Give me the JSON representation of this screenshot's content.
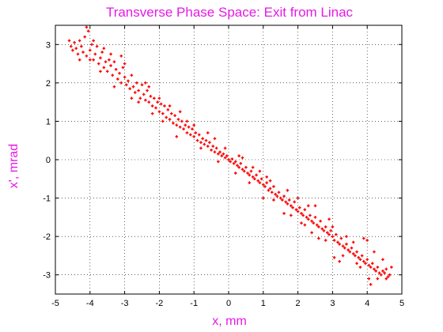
{
  "chart_data": {
    "type": "scatter",
    "title": "Transverse Phase Space: Exit from Linac",
    "xlabel": "x, mm",
    "ylabel": "x', mrad",
    "xlim": [
      -5,
      5
    ],
    "ylim": [
      -3.5,
      3.5
    ],
    "xticks": [
      -5,
      -4,
      -3,
      -2,
      -1,
      0,
      1,
      2,
      3,
      4,
      5
    ],
    "yticks": [
      -3,
      -2,
      -1,
      0,
      1,
      2,
      3
    ],
    "grid": true,
    "colors": {
      "title": "#e619e6",
      "labels": "#e619e6",
      "points": "#ff0000"
    },
    "marker": "plus",
    "points": [
      [
        -4.55,
        2.95
      ],
      [
        -4.5,
        2.85
      ],
      [
        -4.45,
        3.05
      ],
      [
        -4.4,
        2.9
      ],
      [
        -4.35,
        2.75
      ],
      [
        -4.3,
        3.1
      ],
      [
        -4.25,
        2.95
      ],
      [
        -4.2,
        2.8
      ],
      [
        -4.15,
        3.2
      ],
      [
        -4.1,
        2.7
      ],
      [
        -4.05,
        3.35
      ],
      [
        -4.0,
        2.85
      ],
      [
        -3.95,
        3.0
      ],
      [
        -3.9,
        2.6
      ],
      [
        -3.85,
        2.75
      ],
      [
        -3.8,
        2.95
      ],
      [
        -3.75,
        2.5
      ],
      [
        -3.7,
        2.65
      ],
      [
        -3.65,
        2.8
      ],
      [
        -3.6,
        2.4
      ],
      [
        -3.55,
        2.55
      ],
      [
        -3.5,
        2.3
      ],
      [
        -3.45,
        2.6
      ],
      [
        -3.4,
        2.45
      ],
      [
        -3.35,
        2.2
      ],
      [
        -3.3,
        2.55
      ],
      [
        -3.25,
        2.35
      ],
      [
        -3.2,
        2.1
      ],
      [
        -3.15,
        2.25
      ],
      [
        -3.1,
        2.0
      ],
      [
        -3.05,
        2.4
      ],
      [
        -3.0,
        2.15
      ],
      [
        -2.95,
        1.95
      ],
      [
        -2.9,
        2.05
      ],
      [
        -2.85,
        1.85
      ],
      [
        -2.8,
        2.2
      ],
      [
        -2.75,
        1.9
      ],
      [
        -2.7,
        1.75
      ],
      [
        -2.65,
        2.0
      ],
      [
        -2.6,
        1.8
      ],
      [
        -2.55,
        1.6
      ],
      [
        -2.5,
        1.95
      ],
      [
        -2.45,
        1.7
      ],
      [
        -2.4,
        1.55
      ],
      [
        -2.35,
        1.8
      ],
      [
        -2.3,
        1.5
      ],
      [
        -2.25,
        1.65
      ],
      [
        -2.2,
        1.4
      ],
      [
        -2.15,
        1.6
      ],
      [
        -2.1,
        1.35
      ],
      [
        -2.05,
        1.5
      ],
      [
        -2.0,
        1.25
      ],
      [
        -1.95,
        1.45
      ],
      [
        -1.9,
        1.2
      ],
      [
        -1.85,
        1.4
      ],
      [
        -1.8,
        1.1
      ],
      [
        -1.75,
        1.3
      ],
      [
        -1.7,
        1.05
      ],
      [
        -1.65,
        1.2
      ],
      [
        -1.6,
        0.95
      ],
      [
        -1.55,
        1.15
      ],
      [
        -1.5,
        0.9
      ],
      [
        -1.45,
        1.05
      ],
      [
        -1.4,
        0.85
      ],
      [
        -1.35,
        1.0
      ],
      [
        -1.3,
        0.8
      ],
      [
        -1.25,
        0.9
      ],
      [
        -1.2,
        0.7
      ],
      [
        -1.15,
        0.85
      ],
      [
        -1.1,
        0.65
      ],
      [
        -1.05,
        0.8
      ],
      [
        -1.0,
        0.6
      ],
      [
        -0.95,
        0.7
      ],
      [
        -0.9,
        0.5
      ],
      [
        -0.85,
        0.65
      ],
      [
        -0.8,
        0.45
      ],
      [
        -0.75,
        0.55
      ],
      [
        -0.7,
        0.4
      ],
      [
        -0.65,
        0.5
      ],
      [
        -0.6,
        0.35
      ],
      [
        -0.55,
        0.45
      ],
      [
        -0.5,
        0.25
      ],
      [
        -0.45,
        0.35
      ],
      [
        -0.4,
        0.2
      ],
      [
        -0.35,
        0.3
      ],
      [
        -0.3,
        0.15
      ],
      [
        -0.25,
        0.2
      ],
      [
        -0.2,
        0.1
      ],
      [
        -0.15,
        0.15
      ],
      [
        -0.1,
        0.05
      ],
      [
        -0.05,
        0.1
      ],
      [
        0.0,
        0.0
      ],
      [
        0.05,
        -0.05
      ],
      [
        0.1,
        0.02
      ],
      [
        0.15,
        -0.1
      ],
      [
        0.2,
        -0.05
      ],
      [
        0.25,
        -0.15
      ],
      [
        0.3,
        -0.2
      ],
      [
        0.35,
        -0.1
      ],
      [
        0.4,
        -0.25
      ],
      [
        0.45,
        -0.3
      ],
      [
        0.5,
        -0.2
      ],
      [
        0.55,
        -0.35
      ],
      [
        0.6,
        -0.4
      ],
      [
        0.65,
        -0.3
      ],
      [
        0.7,
        -0.45
      ],
      [
        0.75,
        -0.5
      ],
      [
        0.8,
        -0.4
      ],
      [
        0.85,
        -0.55
      ],
      [
        0.9,
        -0.6
      ],
      [
        0.95,
        -0.5
      ],
      [
        1.0,
        -0.65
      ],
      [
        1.05,
        -0.7
      ],
      [
        1.1,
        -0.6
      ],
      [
        1.15,
        -0.8
      ],
      [
        1.2,
        -0.75
      ],
      [
        1.25,
        -0.85
      ],
      [
        1.3,
        -0.7
      ],
      [
        1.35,
        -0.9
      ],
      [
        1.4,
        -0.95
      ],
      [
        1.45,
        -0.85
      ],
      [
        1.5,
        -1.0
      ],
      [
        1.55,
        -1.05
      ],
      [
        1.6,
        -0.95
      ],
      [
        1.65,
        -1.1
      ],
      [
        1.7,
        -1.15
      ],
      [
        1.75,
        -1.05
      ],
      [
        1.8,
        -1.2
      ],
      [
        1.85,
        -1.25
      ],
      [
        1.9,
        -1.1
      ],
      [
        1.95,
        -1.3
      ],
      [
        2.0,
        -1.35
      ],
      [
        2.05,
        -1.25
      ],
      [
        2.1,
        -1.4
      ],
      [
        2.15,
        -1.45
      ],
      [
        2.2,
        -1.3
      ],
      [
        2.25,
        -1.5
      ],
      [
        2.3,
        -1.55
      ],
      [
        2.35,
        -1.45
      ],
      [
        2.4,
        -1.6
      ],
      [
        2.45,
        -1.65
      ],
      [
        2.5,
        -1.5
      ],
      [
        2.55,
        -1.7
      ],
      [
        2.6,
        -1.75
      ],
      [
        2.65,
        -1.6
      ],
      [
        2.7,
        -1.8
      ],
      [
        2.75,
        -1.85
      ],
      [
        2.8,
        -1.75
      ],
      [
        2.85,
        -1.9
      ],
      [
        2.9,
        -1.95
      ],
      [
        2.95,
        -1.85
      ],
      [
        3.0,
        -2.0
      ],
      [
        3.05,
        -2.1
      ],
      [
        3.1,
        -1.95
      ],
      [
        3.15,
        -2.15
      ],
      [
        3.2,
        -2.2
      ],
      [
        3.25,
        -2.05
      ],
      [
        3.3,
        -2.25
      ],
      [
        3.35,
        -2.3
      ],
      [
        3.4,
        -2.2
      ],
      [
        3.45,
        -2.35
      ],
      [
        3.5,
        -2.4
      ],
      [
        3.55,
        -2.3
      ],
      [
        3.6,
        -2.45
      ],
      [
        3.65,
        -2.5
      ],
      [
        3.7,
        -2.4
      ],
      [
        3.75,
        -2.55
      ],
      [
        3.8,
        -2.6
      ],
      [
        3.85,
        -2.5
      ],
      [
        3.9,
        -2.65
      ],
      [
        3.95,
        -2.7
      ],
      [
        4.0,
        -2.6
      ],
      [
        4.05,
        -2.75
      ],
      [
        4.1,
        -2.8
      ],
      [
        4.15,
        -2.7
      ],
      [
        4.2,
        -2.85
      ],
      [
        4.25,
        -2.9
      ],
      [
        4.3,
        -2.8
      ],
      [
        4.35,
        -2.95
      ],
      [
        4.4,
        -3.0
      ],
      [
        4.45,
        -2.9
      ],
      [
        4.5,
        -2.95
      ],
      [
        4.55,
        -2.85
      ],
      [
        4.6,
        -3.05
      ],
      [
        4.7,
        -2.8
      ],
      [
        4.65,
        -3.0
      ],
      [
        4.1,
        -3.25
      ],
      [
        4.05,
        -3.1
      ],
      [
        4.0,
        -2.1
      ],
      [
        3.9,
        -2.05
      ],
      [
        4.2,
        -2.4
      ],
      [
        2.5,
        -1.2
      ],
      [
        2.6,
        -2.05
      ],
      [
        3.05,
        -2.55
      ],
      [
        3.2,
        -2.65
      ],
      [
        2.2,
        -1.7
      ],
      [
        1.6,
        -1.4
      ],
      [
        1.0,
        -1.0
      ],
      [
        0.9,
        -0.3
      ],
      [
        0.4,
        0.05
      ],
      [
        -0.3,
        -0.05
      ],
      [
        -0.6,
        0.7
      ],
      [
        -1.2,
        1.0
      ],
      [
        -1.5,
        0.6
      ],
      [
        -2.0,
        1.6
      ],
      [
        -2.3,
        1.9
      ],
      [
        -2.6,
        1.5
      ],
      [
        -3.0,
        2.5
      ],
      [
        -3.3,
        1.9
      ],
      [
        -3.6,
        2.9
      ],
      [
        -3.9,
        3.1
      ],
      [
        -4.1,
        3.45
      ],
      [
        -4.6,
        3.1
      ],
      [
        -3.1,
        2.7
      ],
      [
        -2.8,
        1.6
      ],
      [
        -1.9,
        1.0
      ],
      [
        -1.0,
        0.9
      ],
      [
        0.2,
        -0.35
      ],
      [
        0.7,
        -0.2
      ],
      [
        1.3,
        -1.05
      ],
      [
        1.7,
        -0.8
      ],
      [
        2.0,
        -1.0
      ],
      [
        2.4,
        -1.9
      ],
      [
        2.9,
        -1.55
      ],
      [
        3.3,
        -2.5
      ],
      [
        3.6,
        -2.15
      ],
      [
        4.3,
        -3.1
      ],
      [
        4.45,
        -2.6
      ],
      [
        -4.3,
        2.6
      ],
      [
        -3.7,
        2.3
      ],
      [
        -2.2,
        1.2
      ],
      [
        -1.7,
        1.4
      ],
      [
        -0.8,
        0.3
      ],
      [
        -0.1,
        0.3
      ],
      [
        0.6,
        -0.6
      ],
      [
        1.1,
        -0.45
      ],
      [
        1.8,
        -1.45
      ],
      [
        2.3,
        -1.2
      ],
      [
        2.8,
        -2.1
      ],
      [
        3.4,
        -2.0
      ],
      [
        3.8,
        -2.8
      ],
      [
        4.55,
        -3.1
      ],
      [
        -4.0,
        2.6
      ],
      [
        -3.4,
        2.75
      ],
      [
        -2.4,
        2.0
      ],
      [
        -1.4,
        1.25
      ],
      [
        -0.4,
        0.55
      ],
      [
        0.3,
        0.1
      ],
      [
        1.2,
        -0.55
      ],
      [
        2.1,
        -1.65
      ],
      [
        3.0,
        -1.75
      ],
      [
        3.7,
        -2.7
      ]
    ]
  }
}
